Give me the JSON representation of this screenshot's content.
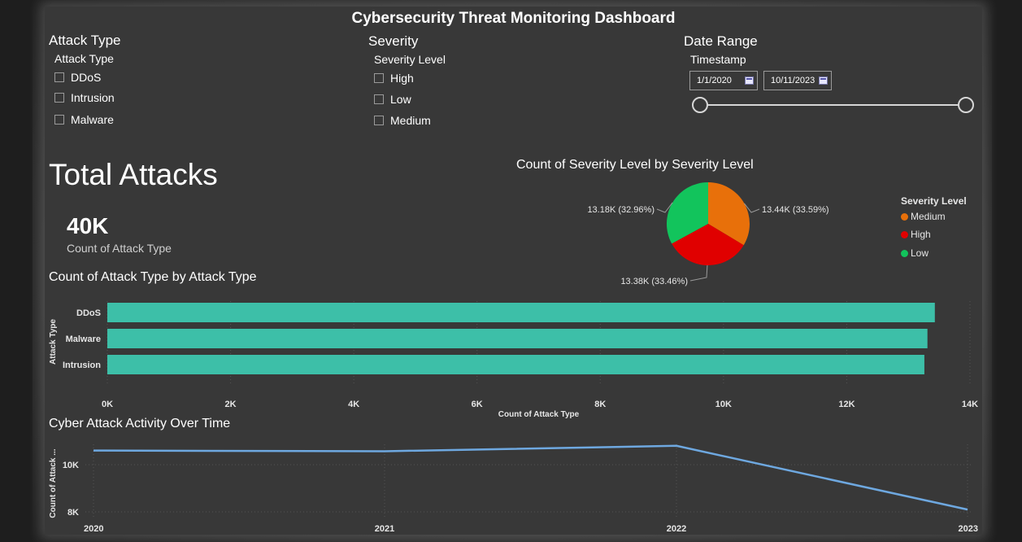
{
  "dashboard": {
    "title": "Cybersecurity Threat Monitoring Dashboard"
  },
  "slicers": {
    "attack": {
      "header": "Attack Type",
      "field": "Attack Type",
      "options": [
        "DDoS",
        "Intrusion",
        "Malware"
      ]
    },
    "severity": {
      "header": "Severity",
      "field": "Severity Level",
      "options": [
        "High",
        "Low",
        "Medium"
      ]
    },
    "date": {
      "header": "Date Range",
      "field": "Timestamp",
      "start": "1/1/2020",
      "end": "10/11/2023"
    }
  },
  "kpi": {
    "title": "Total Attacks",
    "value": "40K",
    "label": "Count of Attack Type"
  },
  "pie": {
    "title": "Count of Severity Level by Severity Level",
    "legend_title": "Severity Level",
    "legend": [
      "Medium",
      "High",
      "Low"
    ]
  },
  "bar": {
    "title": "Count of Attack Type by Attack Type"
  },
  "line": {
    "title": "Cyber Attack Activity Over Time"
  },
  "colors": {
    "medium": "#e8700a",
    "high": "#e00000",
    "low": "#12c45c",
    "bar": "#3dbfa8",
    "line": "#6ea8e0"
  },
  "chart_data": [
    {
      "type": "pie",
      "title": "Count of Severity Level by Severity Level",
      "legend_title": "Severity Level",
      "slices": [
        {
          "name": "Medium",
          "value": 13440,
          "label": "13.44K (33.59%)",
          "color": "#e8700a"
        },
        {
          "name": "High",
          "value": 13380,
          "label": "13.38K (33.46%)",
          "color": "#e00000"
        },
        {
          "name": "Low",
          "value": 13180,
          "label": "13.18K (32.96%)",
          "color": "#12c45c"
        }
      ]
    },
    {
      "type": "bar",
      "title": "Count of Attack Type by Attack Type",
      "categories": [
        "DDoS",
        "Malware",
        "Intrusion"
      ],
      "values": [
        13430,
        13310,
        13260
      ],
      "xlabel": "Count of Attack Type",
      "ylabel": "Attack Type",
      "xlim": [
        0,
        14000
      ],
      "xticks": [
        "0K",
        "2K",
        "4K",
        "6K",
        "8K",
        "10K",
        "12K",
        "14K"
      ]
    },
    {
      "type": "line",
      "title": "Cyber Attack Activity Over Time",
      "x": [
        "2020",
        "2021",
        "2022",
        "2023"
      ],
      "values": [
        10600,
        10570,
        10800,
        8100
      ],
      "ylabel": "Count of Attack ...",
      "yticks": [
        "8K",
        "10K"
      ]
    }
  ]
}
